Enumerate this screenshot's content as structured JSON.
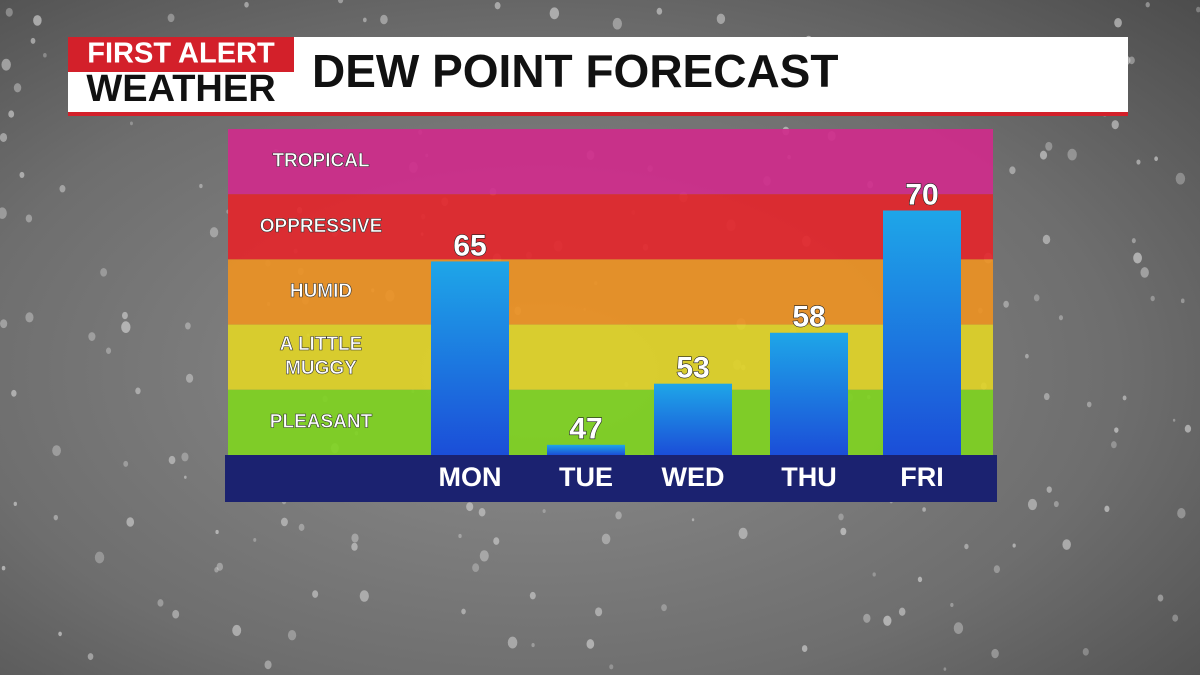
{
  "brand": {
    "line1": "FIRST ALERT",
    "line2": "WEATHER"
  },
  "chart_data": {
    "type": "bar",
    "title": "DEW POINT FORECAST",
    "categories": [
      "MON",
      "TUE",
      "WED",
      "THU",
      "FRI"
    ],
    "values": [
      65,
      47,
      53,
      58,
      70
    ],
    "ylim": [
      46,
      78
    ],
    "bands": [
      {
        "label": "TROPICAL",
        "color": "#cf2b8b"
      },
      {
        "label": "OPPRESSIVE",
        "color": "#e3262b"
      },
      {
        "label": "HUMID",
        "color": "#eb9123"
      },
      {
        "label": "A LITTLE MUGGY",
        "color": "#e0d327"
      },
      {
        "label": "PLEASANT",
        "color": "#7fd321"
      }
    ]
  }
}
